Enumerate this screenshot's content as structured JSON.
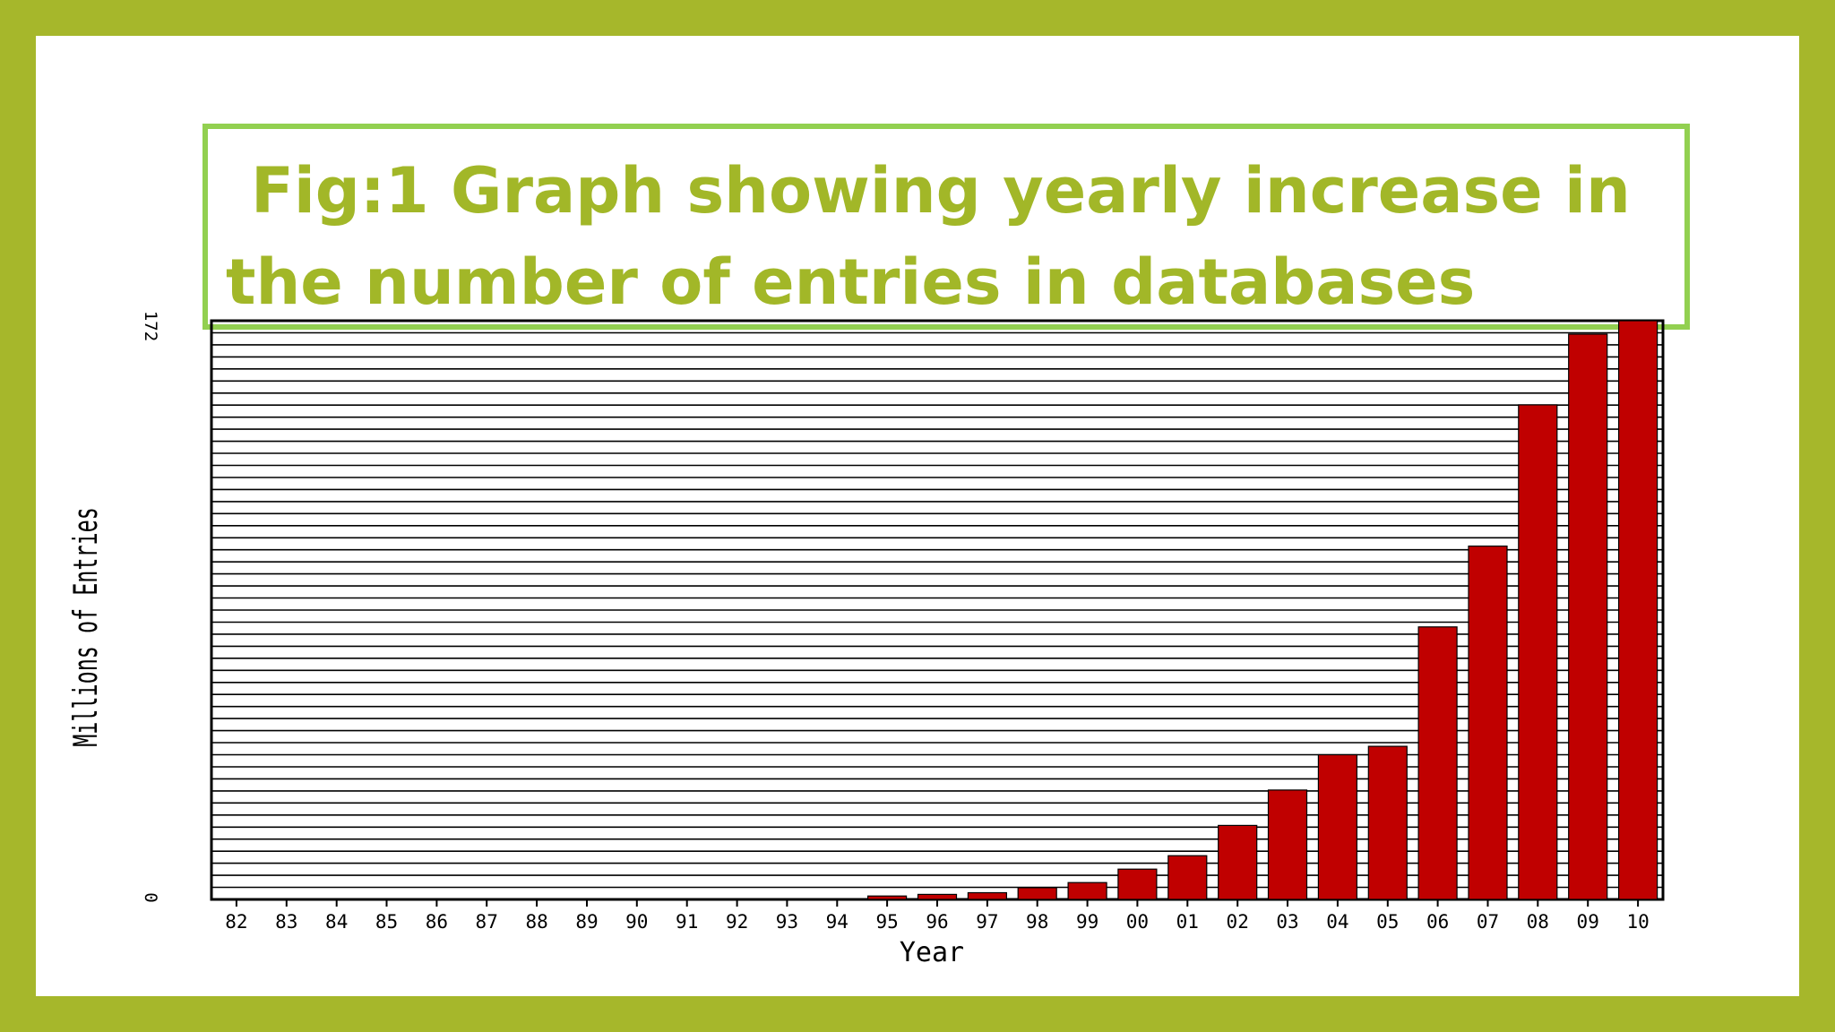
{
  "slide": {
    "title": "Fig:1 Graph showing yearly increase in the number of entries in databases"
  },
  "colors": {
    "frame": "#a6b72b",
    "title_text": "#a2b728",
    "title_border": "#92d050",
    "bar": "#c00000"
  },
  "chart_data": {
    "type": "bar",
    "title": "",
    "xlabel": "Year",
    "ylabel": "Millions of Entries",
    "categories": [
      "82",
      "83",
      "84",
      "85",
      "86",
      "87",
      "88",
      "89",
      "90",
      "91",
      "92",
      "93",
      "94",
      "95",
      "96",
      "97",
      "98",
      "99",
      "00",
      "01",
      "02",
      "03",
      "04",
      "05",
      "06",
      "07",
      "08",
      "09",
      "10"
    ],
    "values": [
      0,
      0,
      0,
      0,
      0,
      0,
      0,
      0,
      0,
      0,
      0,
      0,
      0,
      1,
      1.5,
      2,
      3.5,
      5,
      9,
      13,
      22,
      32.5,
      43,
      45.5,
      81,
      105,
      147,
      168,
      172
    ],
    "ylim": [
      0,
      172
    ],
    "ytick_top_label": "172",
    "ytick_bottom_label": "0",
    "grid": true,
    "gridline_count": 48
  }
}
